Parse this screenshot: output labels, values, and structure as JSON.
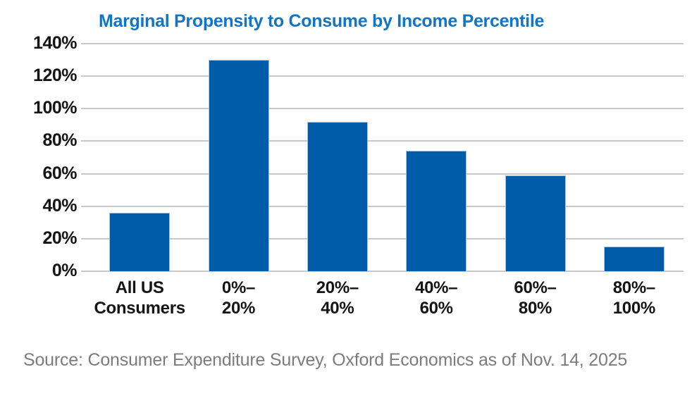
{
  "title": "Marginal Propensity to Consume by Income Percentile",
  "source": "Source: Consumer Expenditure Survey, Oxford Economics as of Nov. 14, 2025",
  "colors": {
    "bar_fill": "#005CA9",
    "bar_border": "#9DC3E6",
    "title_text": "#1274C5",
    "gridline": "#C9C9C9",
    "axis_text": "#141414",
    "source_text": "#7C7C7C",
    "background": "#FFFFFF"
  },
  "chart_data": {
    "type": "bar",
    "title": "Marginal Propensity to Consume by Income Percentile",
    "categories": [
      "All US Consumers",
      "0%–20%",
      "20%–40%",
      "40%–60%",
      "60%–80%",
      "80%–100%"
    ],
    "category_lines": [
      [
        "All US",
        "Consumers"
      ],
      [
        "0%–",
        "20%"
      ],
      [
        "20%–",
        "40%"
      ],
      [
        "40%–",
        "60%"
      ],
      [
        "60%–",
        "80%"
      ],
      [
        "80%–",
        "100%"
      ]
    ],
    "values": [
      36,
      130,
      92,
      74,
      59,
      15
    ],
    "values_unit": "%",
    "xlabel": "",
    "ylabel": "",
    "ylim": [
      0,
      140
    ],
    "ytick_step": 20,
    "ytick_labels": [
      "0%",
      "20%",
      "40%",
      "60%",
      "80%",
      "100%",
      "120%",
      "140%"
    ],
    "grid": true,
    "legend": false,
    "annotation": "Source: Consumer Expenditure Survey, Oxford Economics as of Nov. 14, 2025"
  }
}
